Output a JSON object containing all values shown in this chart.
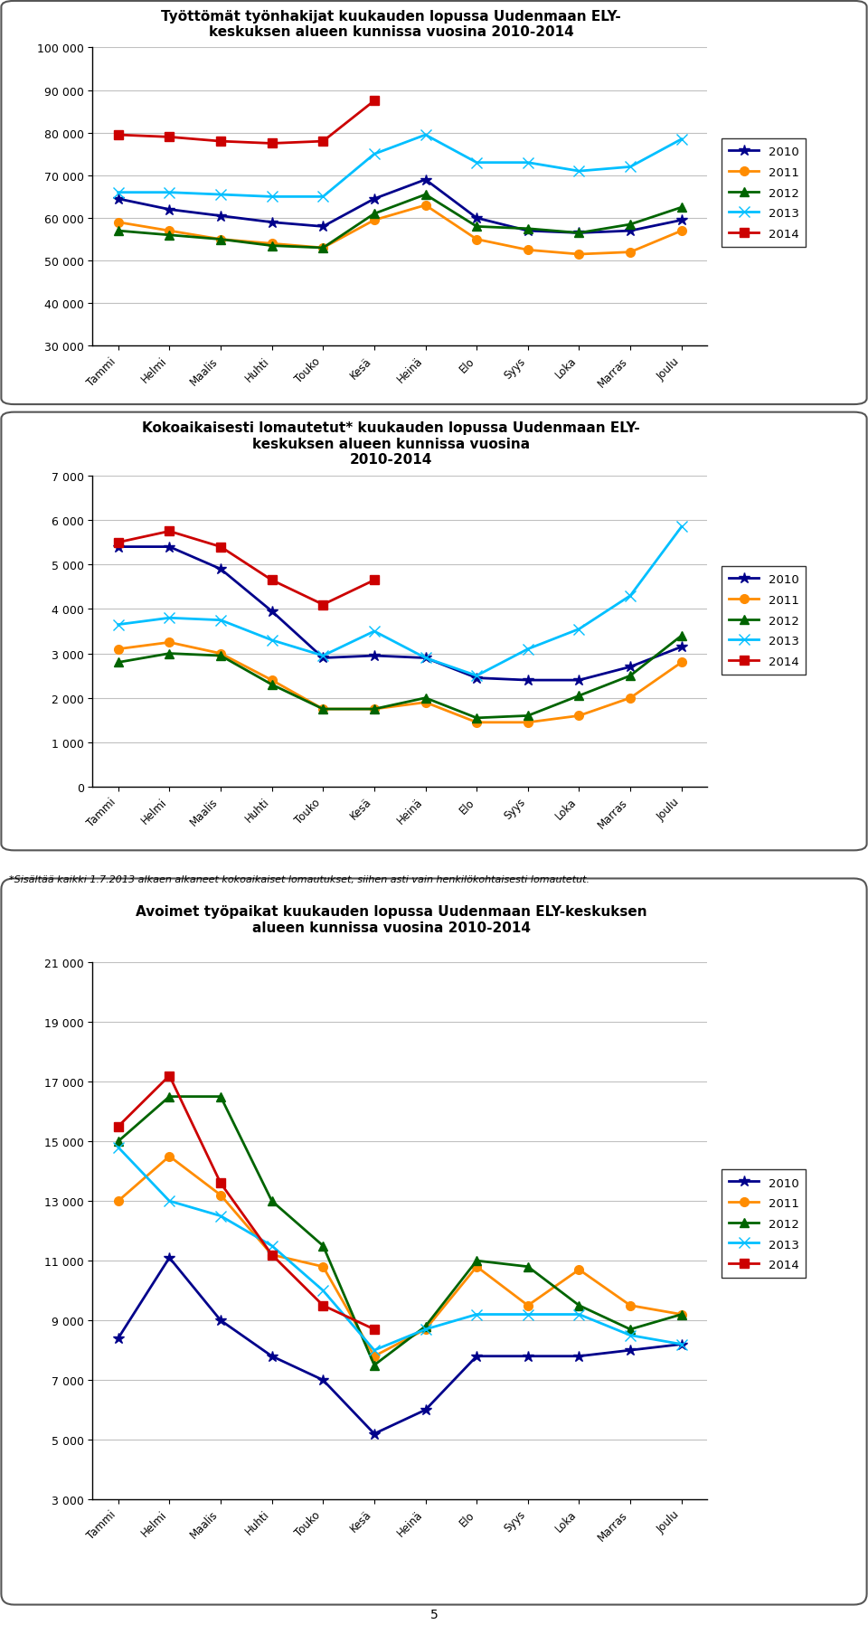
{
  "months": [
    "Tammi",
    "Helmi",
    "Maalis",
    "Huhti",
    "Touko",
    "Kesä",
    "Heinä",
    "Elo",
    "Syys",
    "Loka",
    "Marras",
    "Joulu"
  ],
  "chart1_title": "Työttömät työnhakijat kuukauden lopussa Uudenmaan ELY-\nkeskuksen alueen kunnissa vuosina 2010-2014",
  "chart1_data": {
    "2010": [
      64500,
      62000,
      60500,
      59000,
      58000,
      64500,
      69000,
      60000,
      57000,
      56500,
      57000,
      59500
    ],
    "2011": [
      59000,
      57000,
      55000,
      54000,
      53000,
      59500,
      63000,
      55000,
      52500,
      51500,
      52000,
      57000
    ],
    "2012": [
      57000,
      56000,
      55000,
      53500,
      53000,
      61000,
      65500,
      58000,
      57500,
      56500,
      58500,
      62500
    ],
    "2013": [
      66000,
      66000,
      65500,
      65000,
      65000,
      75000,
      79500,
      73000,
      73000,
      71000,
      72000,
      78500
    ],
    "2014": [
      79500,
      79000,
      78000,
      77500,
      78000,
      87500,
      null,
      null,
      null,
      null,
      null,
      null
    ]
  },
  "chart1_ylim": [
    30000,
    100000
  ],
  "chart1_yticks": [
    30000,
    40000,
    50000,
    60000,
    70000,
    80000,
    90000,
    100000
  ],
  "chart2_title": "Kokoaikaisesti lomautetut* kuukauden lopussa Uudenmaan ELY-\nkeskuksen alueen kunnissa vuosina\n2010-2014",
  "chart2_data": {
    "2010": [
      5400,
      5400,
      4900,
      3950,
      2900,
      2950,
      2900,
      2450,
      2400,
      2400,
      2700,
      3150
    ],
    "2011": [
      3100,
      3250,
      3000,
      2400,
      1750,
      1750,
      1900,
      1450,
      1450,
      1600,
      2000,
      2800
    ],
    "2012": [
      2800,
      3000,
      2950,
      2300,
      1750,
      1750,
      2000,
      1550,
      1600,
      2050,
      2500,
      3400
    ],
    "2013": [
      3650,
      3800,
      3750,
      3300,
      2950,
      3500,
      2900,
      2500,
      3100,
      3550,
      4300,
      5850
    ],
    "2014": [
      5500,
      5750,
      5400,
      4650,
      4100,
      4650,
      null,
      null,
      null,
      null,
      null,
      null
    ]
  },
  "chart2_ylim": [
    0,
    7000
  ],
  "chart2_yticks": [
    0,
    1000,
    2000,
    3000,
    4000,
    5000,
    6000,
    7000
  ],
  "chart3_title": "Avoimet työpaikat kuukauden lopussa Uudenmaan ELY-keskuksen\nalueen kunnissa vuosina 2010-2014",
  "chart3_data": {
    "2010": [
      8400,
      11100,
      9000,
      7800,
      7000,
      5200,
      6000,
      7800,
      7800,
      7800,
      8000,
      8200
    ],
    "2011": [
      13000,
      14500,
      13200,
      11200,
      10800,
      7800,
      8700,
      10800,
      9500,
      10700,
      9500,
      9200
    ],
    "2012": [
      15000,
      16500,
      16500,
      13000,
      11500,
      7500,
      8800,
      11000,
      10800,
      9500,
      8700,
      9200
    ],
    "2013": [
      14800,
      13000,
      12500,
      11500,
      10000,
      8000,
      8700,
      9200,
      9200,
      9200,
      8500,
      8200
    ],
    "2014": [
      15500,
      17200,
      13600,
      11200,
      9500,
      8700,
      null,
      null,
      null,
      null,
      null,
      null
    ]
  },
  "chart3_ylim": [
    3000,
    21000
  ],
  "chart3_yticks": [
    3000,
    5000,
    7000,
    9000,
    11000,
    13000,
    15000,
    17000,
    19000,
    21000
  ],
  "footnote": "*Sisältää kaikki 1.7.2013 alkaen alkaneet kokoaikaiset lomautukset, siihen asti vain henkilökohtaisesti lomautetut.",
  "page_number": "5",
  "colors": {
    "2010": "#00008B",
    "2011": "#FF8C00",
    "2012": "#006400",
    "2013": "#00BFFF",
    "2014": "#CC0000"
  },
  "legend_labels": [
    "2010",
    "2011",
    "2012",
    "2013",
    "2014"
  ],
  "markers": {
    "2010": "*",
    "2011": "o",
    "2012": "^",
    "2013": "x",
    "2014": "s"
  }
}
